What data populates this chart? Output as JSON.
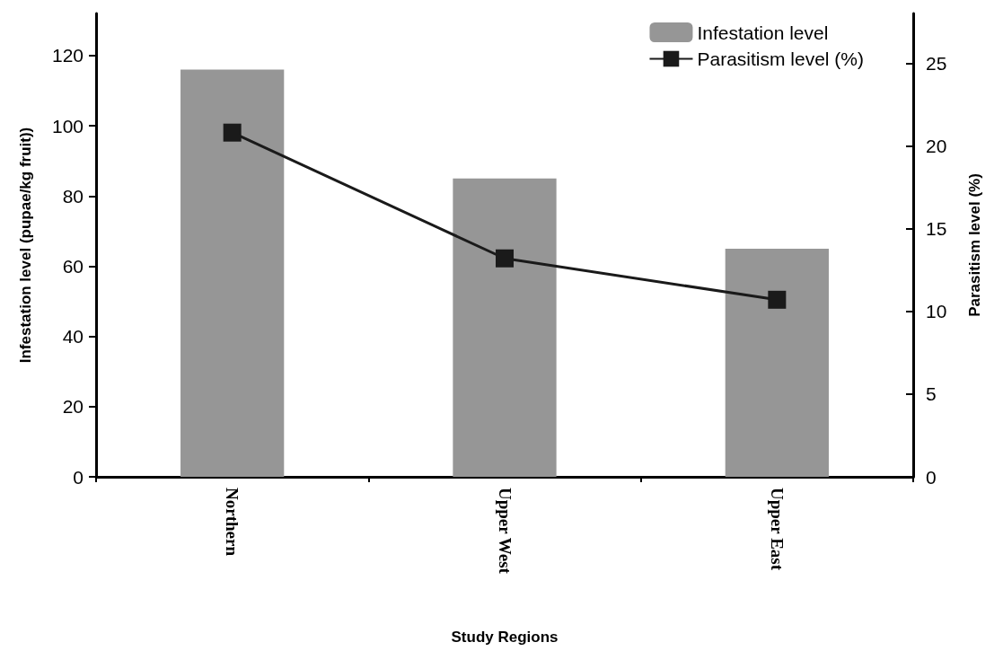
{
  "chart_data": {
    "type": "bar",
    "xlabel": "Study Regions",
    "ylabel": "Infestation level (pupae/kg fruit))",
    "y2label": "Parasitism level (%)",
    "categories": [
      "Northern",
      "Upper West",
      "Upper East"
    ],
    "series": [
      {
        "name": "Infestation level",
        "color": "#969696",
        "values": [
          116,
          85,
          65
        ]
      },
      {
        "name": "Parasitism level (%)",
        "type": "line",
        "axis": "y2",
        "color": "#1a1a1a",
        "marker": "square",
        "values": [
          20.8,
          13.2,
          10.7
        ]
      }
    ],
    "ylim": [
      0,
      132
    ],
    "yticks": [
      0,
      20,
      40,
      60,
      80,
      100,
      120
    ],
    "y2lim": [
      0,
      28
    ],
    "y2ticks": [
      0,
      5,
      10,
      15,
      20,
      25
    ],
    "grid": false,
    "legend": "top right"
  }
}
